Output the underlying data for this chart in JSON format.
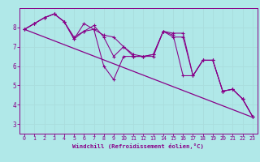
{
  "xlabel": "Windchill (Refroidissement éolien,°C)",
  "background_color": "#b0e8e8",
  "line_color": "#880088",
  "grid_color": "#99dddd",
  "xlim": [
    -0.5,
    23.5
  ],
  "ylim": [
    2.5,
    9.0
  ],
  "yticks": [
    3,
    4,
    5,
    6,
    7,
    8
  ],
  "xticks": [
    0,
    1,
    2,
    3,
    4,
    5,
    6,
    7,
    8,
    9,
    10,
    11,
    12,
    13,
    14,
    15,
    16,
    17,
    18,
    19,
    20,
    21,
    22,
    23
  ],
  "series": [
    [
      7.9,
      8.2,
      8.5,
      8.7,
      8.3,
      7.4,
      8.2,
      7.9,
      7.6,
      7.5,
      7.0,
      6.6,
      6.5,
      6.6,
      7.8,
      7.7,
      7.7,
      5.5,
      6.3,
      6.3,
      4.7,
      4.8,
      4.3,
      3.4
    ],
    [
      7.9,
      8.2,
      8.5,
      8.7,
      8.3,
      7.4,
      7.8,
      7.9,
      6.0,
      5.3,
      6.5,
      6.5,
      6.5,
      6.6,
      7.8,
      7.6,
      5.5,
      5.5,
      6.3,
      6.3,
      4.7,
      4.8,
      4.3,
      3.4
    ],
    [
      7.9,
      8.2,
      8.5,
      8.7,
      8.3,
      7.5,
      7.8,
      8.1,
      7.5,
      6.5,
      7.0,
      6.5,
      6.5,
      6.5,
      7.8,
      7.5,
      7.5,
      5.5,
      6.3,
      6.3,
      4.7,
      4.8,
      4.3,
      3.4
    ]
  ],
  "trend_line": [
    [
      0,
      7.9
    ],
    [
      23,
      3.35
    ]
  ]
}
